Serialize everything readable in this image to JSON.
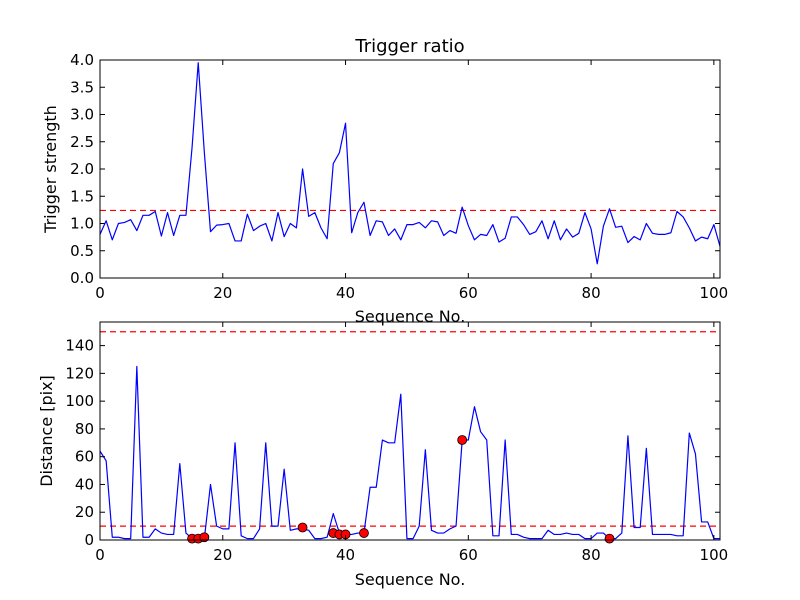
{
  "chart_data": [
    {
      "type": "line",
      "title": "Trigger ratio",
      "xlabel": "Sequence No.",
      "ylabel": "Trigger strength",
      "xlim": [
        0,
        101
      ],
      "ylim": [
        0,
        4.0
      ],
      "xticks": [
        "0",
        "20",
        "40",
        "60",
        "80",
        "100"
      ],
      "yticks": [
        "0.0",
        "0.5",
        "1.0",
        "1.5",
        "2.0",
        "2.5",
        "3.0",
        "3.5",
        "4.0"
      ],
      "grid": false,
      "series": [
        {
          "color": "#0000ff",
          "x": [
            0,
            1,
            2,
            3,
            4,
            5,
            6,
            7,
            8,
            9,
            10,
            11,
            12,
            13,
            14,
            15,
            16,
            17,
            18,
            19,
            20,
            21,
            22,
            23,
            24,
            25,
            26,
            27,
            28,
            29,
            30,
            31,
            32,
            33,
            34,
            35,
            36,
            37,
            38,
            39,
            40,
            41,
            42,
            43,
            44,
            45,
            46,
            47,
            48,
            49,
            50,
            51,
            52,
            53,
            54,
            55,
            56,
            57,
            58,
            59,
            60,
            61,
            62,
            63,
            64,
            65,
            66,
            67,
            68,
            69,
            70,
            71,
            72,
            73,
            74,
            75,
            76,
            77,
            78,
            79,
            80,
            81,
            82,
            83,
            84,
            85,
            86,
            87,
            88,
            89,
            90,
            91,
            92,
            93,
            94,
            95,
            96,
            97,
            98,
            99,
            100,
            101
          ],
          "y": [
            0.8,
            1.05,
            0.7,
            1.0,
            1.02,
            1.07,
            0.87,
            1.15,
            1.15,
            1.22,
            0.77,
            1.2,
            0.78,
            1.15,
            1.15,
            2.4,
            3.95,
            2.3,
            0.85,
            0.97,
            0.98,
            1.0,
            0.68,
            0.68,
            1.17,
            0.87,
            0.95,
            1.0,
            0.68,
            1.2,
            0.76,
            1.0,
            0.92,
            2.0,
            1.13,
            1.2,
            0.92,
            0.72,
            2.1,
            2.3,
            2.84,
            0.83,
            1.2,
            1.39,
            0.78,
            1.05,
            1.03,
            0.78,
            0.9,
            0.7,
            0.98,
            0.98,
            1.02,
            0.92,
            1.05,
            1.03,
            0.78,
            0.87,
            0.82,
            1.3,
            0.96,
            0.7,
            0.8,
            0.78,
            0.98,
            0.66,
            0.73,
            1.12,
            1.12,
            0.98,
            0.8,
            0.85,
            1.05,
            0.72,
            1.05,
            0.7,
            0.9,
            0.75,
            0.82,
            1.2,
            0.9,
            0.26,
            0.95,
            1.27,
            0.93,
            0.95,
            0.65,
            0.76,
            0.7,
            1.0,
            0.82,
            0.8,
            0.8,
            0.83,
            1.22,
            1.12,
            0.92,
            0.68,
            0.75,
            0.72,
            0.98,
            0.58
          ]
        }
      ],
      "threshold": {
        "value": 1.24,
        "color": "#ff0000",
        "style": "dashed"
      }
    },
    {
      "type": "line",
      "xlabel": "Sequence No.",
      "ylabel": "Distance [pix]",
      "xlim": [
        0,
        101
      ],
      "ylim": [
        0,
        157
      ],
      "xticks": [
        "0",
        "20",
        "40",
        "60",
        "80",
        "100"
      ],
      "yticks": [
        "0",
        "20",
        "40",
        "60",
        "80",
        "100",
        "120",
        "140"
      ],
      "grid": false,
      "series": [
        {
          "color": "#0000ff",
          "x": [
            0,
            1,
            2,
            3,
            4,
            5,
            6,
            7,
            8,
            9,
            10,
            11,
            12,
            13,
            14,
            15,
            16,
            17,
            18,
            19,
            20,
            21,
            22,
            23,
            24,
            25,
            26,
            27,
            28,
            29,
            30,
            31,
            32,
            33,
            34,
            35,
            36,
            37,
            38,
            39,
            40,
            41,
            42,
            43,
            44,
            45,
            46,
            47,
            48,
            49,
            50,
            51,
            52,
            53,
            54,
            55,
            56,
            57,
            58,
            59,
            60,
            61,
            62,
            63,
            64,
            65,
            66,
            67,
            68,
            69,
            70,
            71,
            72,
            73,
            74,
            75,
            76,
            77,
            78,
            79,
            80,
            81,
            82,
            83,
            84,
            85,
            86,
            87,
            88,
            89,
            90,
            91,
            92,
            93,
            94,
            95,
            96,
            97,
            98,
            99,
            100,
            101
          ],
          "y": [
            64,
            57,
            2,
            2,
            1,
            1,
            125,
            2,
            2,
            8,
            5,
            4,
            4,
            55,
            5,
            1,
            1,
            1,
            40,
            10,
            8,
            8,
            70,
            3,
            1,
            1,
            8,
            70,
            10,
            10,
            51,
            7,
            8,
            8,
            7,
            1,
            1,
            2,
            19,
            5,
            4,
            4,
            5,
            5,
            38,
            38,
            72,
            70,
            70,
            105,
            1,
            1,
            10,
            65,
            7,
            5,
            5,
            8,
            10,
            72,
            72,
            96,
            78,
            72,
            3,
            3,
            72,
            4,
            4,
            2,
            1,
            1,
            1,
            7,
            4,
            4,
            5,
            4,
            4,
            1,
            1,
            5,
            5,
            1,
            1,
            5,
            75,
            9,
            9,
            66,
            4,
            4,
            4,
            4,
            3,
            3,
            77,
            62,
            13,
            13,
            1,
            1
          ]
        }
      ],
      "markers": {
        "color": "#ff0000",
        "x": [
          15,
          16,
          17,
          33,
          38,
          39,
          40,
          43,
          59,
          83
        ],
        "y": [
          1,
          1,
          2,
          9,
          5,
          4,
          4,
          5,
          72,
          1
        ]
      },
      "thresholds": [
        {
          "value": 150,
          "color": "#ff0000",
          "style": "dashed"
        },
        {
          "value": 10,
          "color": "#ff0000",
          "style": "dashed"
        }
      ]
    }
  ]
}
